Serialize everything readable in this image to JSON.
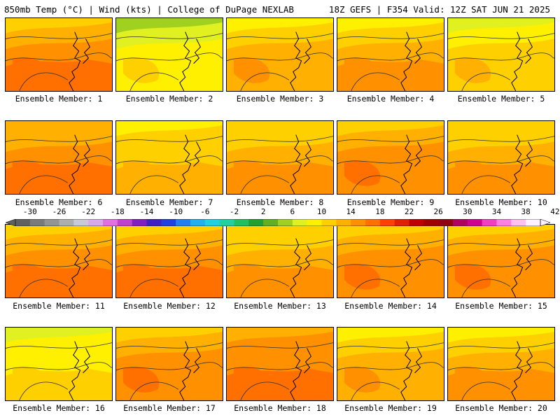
{
  "header": {
    "left": "850mb Temp (°C) | Wind (kts) | College of DuPage NEXLAB",
    "right": "18Z GEFS | F354 Valid: 12Z SAT JUN 21 2025"
  },
  "panels": [
    {
      "label": "Ensemble Member: 1",
      "warmth": 0.74
    },
    {
      "label": "Ensemble Member: 2",
      "warmth": 0.35
    },
    {
      "label": "Ensemble Member: 3",
      "warmth": 0.6
    },
    {
      "label": "Ensemble Member: 4",
      "warmth": 0.62
    },
    {
      "label": "Ensemble Member: 5",
      "warmth": 0.48
    },
    {
      "label": "Ensemble Member: 6",
      "warmth": 0.78
    },
    {
      "label": "Ensemble Member: 7",
      "warmth": 0.55
    },
    {
      "label": "Ensemble Member: 8",
      "warmth": 0.66
    },
    {
      "label": "Ensemble Member: 9",
      "warmth": 0.7
    },
    {
      "label": "Ensemble Member: 10",
      "warmth": 0.66
    },
    {
      "label": "Ensemble Member: 11",
      "warmth": 0.76
    },
    {
      "label": "Ensemble Member: 12",
      "warmth": 0.74
    },
    {
      "label": "Ensemble Member: 13",
      "warmth": 0.64
    },
    {
      "label": "Ensemble Member: 14",
      "warmth": 0.7
    },
    {
      "label": "Ensemble Member: 15",
      "warmth": 0.7
    },
    {
      "label": "Ensemble Member: 16",
      "warmth": 0.42
    },
    {
      "label": "Ensemble Member: 17",
      "warmth": 0.72
    },
    {
      "label": "Ensemble Member: 18",
      "warmth": 0.8
    },
    {
      "label": "Ensemble Member: 19",
      "warmth": 0.58
    },
    {
      "label": "Ensemble Member: 20",
      "warmth": 0.62
    }
  ],
  "colorbar": {
    "tick_labels": [
      "-30",
      "-26",
      "-22",
      "-18",
      "-14",
      "-10",
      "-6",
      "-2",
      "2",
      "6",
      "10",
      "14",
      "18",
      "22",
      "26",
      "30",
      "34",
      "38",
      "42"
    ],
    "colors": [
      "#606060",
      "#7a7a7a",
      "#949494",
      "#aeaeae",
      "#c8c8d8",
      "#d8a8e8",
      "#e070e0",
      "#c040d0",
      "#8020c0",
      "#4020c0",
      "#2040e0",
      "#2080f0",
      "#20b0f0",
      "#20d0e0",
      "#20d0a0",
      "#20c060",
      "#20a030",
      "#60b020",
      "#a0d020",
      "#e0f020",
      "#fff000",
      "#ffd000",
      "#ffb000",
      "#ff9000",
      "#ff7000",
      "#ff4000",
      "#e02000",
      "#c00000",
      "#a00000",
      "#900010",
      "#b00060",
      "#d00090",
      "#f040c0",
      "#ff80e0",
      "#ffc0f0",
      "#fff0ff"
    ]
  }
}
